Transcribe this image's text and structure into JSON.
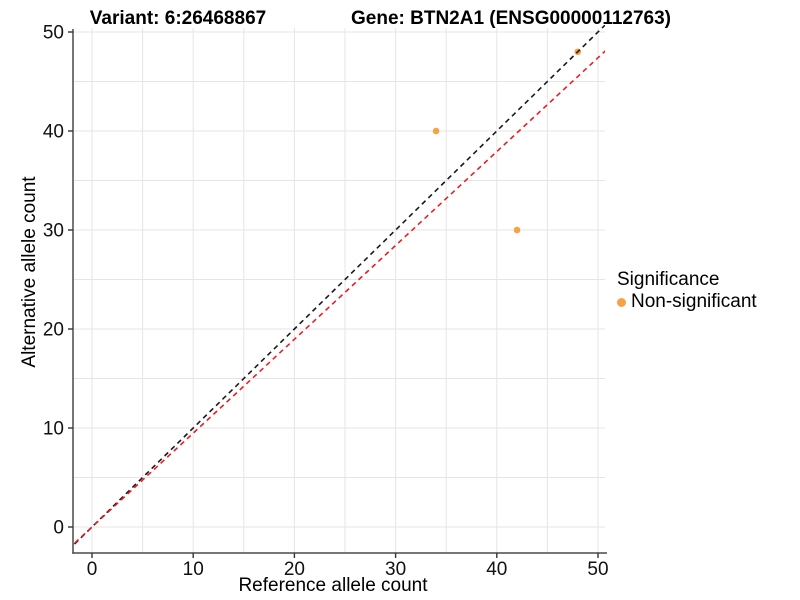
{
  "figure": {
    "title_variant": "Variant: 6:26468867",
    "title_gene": "Gene: BTN2A1 (ENSG00000112763)",
    "x_label": "Reference allele count",
    "y_label": "Alternative allele count"
  },
  "legend": {
    "title": "Significance",
    "items": [
      {
        "label": "Non-significant",
        "color": "#F9A243"
      }
    ]
  },
  "chart_data": {
    "type": "scatter",
    "title": "Variant: 6:26468867  /  Gene: BTN2A1 (ENSG00000112763)",
    "xlabel": "Reference allele count",
    "ylabel": "Alternative allele count",
    "xlim": [
      -2.5,
      52.5
    ],
    "ylim": [
      -2.6,
      50.7
    ],
    "xticks": [
      0,
      10,
      20,
      30,
      40,
      50
    ],
    "yticks": [
      0,
      10,
      20,
      30,
      40,
      50
    ],
    "grid_every": 5,
    "grid": "on",
    "legend_position": "right",
    "series": [
      {
        "name": "Non-significant",
        "color": "#F9A243",
        "points": [
          {
            "x": 34,
            "y": 40
          },
          {
            "x": 42,
            "y": 30
          },
          {
            "x": 48,
            "y": 48
          }
        ]
      }
    ],
    "reference_lines": [
      {
        "name": "identity-line",
        "slope": 1.0,
        "intercept": 0,
        "style": "dashed",
        "color": "#1A1A1A"
      },
      {
        "name": "expected-ratio-line",
        "slope": 0.948,
        "intercept": 0,
        "style": "dashed",
        "color": "#ED1C24"
      }
    ]
  },
  "colors": {
    "gridline": "#E5E5E5",
    "axis_line": "#4A4A4A",
    "tick_mark": "#333333",
    "text": "#111111",
    "background": "#FFFFFF"
  }
}
